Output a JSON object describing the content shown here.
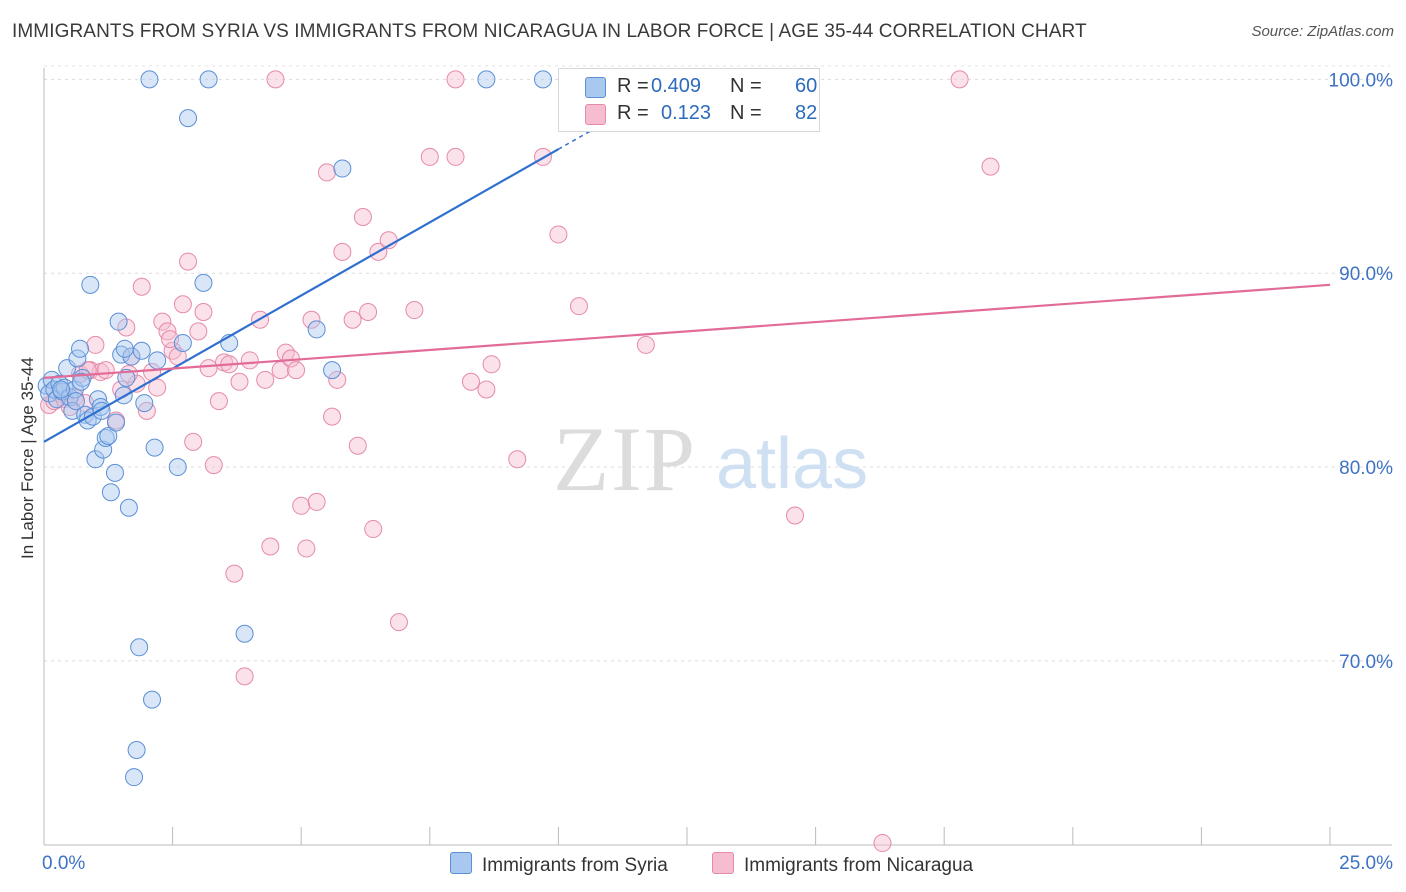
{
  "title": "IMMIGRANTS FROM SYRIA VS IMMIGRANTS FROM NICARAGUA IN LABOR FORCE | AGE 35-44 CORRELATION CHART",
  "source": "Source: ZipAtlas.com",
  "watermark": {
    "zip": "ZIP",
    "atlas": "atlas"
  },
  "legend": {
    "r_label": "R =",
    "n_label": "N =",
    "syria": {
      "r": "0.409",
      "n": "60"
    },
    "nicaragua": {
      "r": "0.123",
      "n": "82"
    }
  },
  "colors": {
    "syria_fill": "#a8c8ef",
    "syria_stroke": "#5b8fd6",
    "syria_line": "#2f6fd0",
    "nicaragua_fill": "#f6bdd0",
    "nicaragua_stroke": "#e58aaa",
    "nicaragua_line": "#e26b98",
    "tick_text": "#3d72c4",
    "grid": "#dcdcdc"
  },
  "chart_data": {
    "type": "scatter",
    "title": "IMMIGRANTS FROM SYRIA VS IMMIGRANTS FROM NICARAGUA IN LABOR FORCE | AGE 35-44 CORRELATION CHART",
    "xlabel": "",
    "ylabel": "In Labor Force | Age 35-44",
    "xlim": [
      0,
      25
    ],
    "ylim": [
      60.5,
      101
    ],
    "x_tick_labels": [
      "0.0%",
      "25.0%"
    ],
    "y_ticks": [
      70,
      80,
      90,
      100
    ],
    "y_tick_labels": [
      "70.0%",
      "80.0%",
      "90.0%",
      "100.0%"
    ],
    "series": [
      {
        "name": "Immigrants from Syria",
        "trend": {
          "x0": 0,
          "y0": 81.3,
          "x1": 10.0,
          "y1": 96.4,
          "dash_x1": 11.0,
          "dash_y1": 97.9
        },
        "points": [
          [
            0.05,
            84.2
          ],
          [
            0.1,
            83.8
          ],
          [
            0.15,
            84.5
          ],
          [
            0.2,
            84.0
          ],
          [
            0.25,
            83.5
          ],
          [
            0.3,
            84.3
          ],
          [
            0.35,
            83.9
          ],
          [
            0.4,
            84.1
          ],
          [
            0.45,
            85.1
          ],
          [
            0.5,
            83.6
          ],
          [
            0.55,
            82.9
          ],
          [
            0.6,
            84.0
          ],
          [
            0.65,
            85.6
          ],
          [
            0.7,
            86.1
          ],
          [
            0.75,
            84.6
          ],
          [
            0.8,
            82.7
          ],
          [
            0.85,
            82.4
          ],
          [
            0.9,
            89.4
          ],
          [
            0.95,
            82.6
          ],
          [
            1.0,
            80.4
          ],
          [
            1.05,
            83.5
          ],
          [
            1.1,
            83.1
          ],
          [
            1.15,
            80.9
          ],
          [
            1.2,
            81.5
          ],
          [
            1.25,
            81.6
          ],
          [
            1.3,
            78.7
          ],
          [
            1.4,
            82.3
          ],
          [
            1.45,
            87.5
          ],
          [
            1.5,
            85.8
          ],
          [
            1.55,
            83.7
          ],
          [
            1.6,
            84.6
          ],
          [
            1.65,
            77.9
          ],
          [
            1.7,
            85.7
          ],
          [
            1.75,
            64.0
          ],
          [
            1.8,
            65.4
          ],
          [
            1.85,
            70.7
          ],
          [
            1.9,
            86.0
          ],
          [
            1.95,
            83.3
          ],
          [
            2.05,
            100.0
          ],
          [
            2.1,
            68.0
          ],
          [
            2.15,
            81.0
          ],
          [
            2.2,
            85.5
          ],
          [
            2.6,
            80.0
          ],
          [
            2.7,
            86.4
          ],
          [
            2.8,
            98.0
          ],
          [
            3.1,
            89.5
          ],
          [
            3.2,
            100.0
          ],
          [
            3.6,
            86.4
          ],
          [
            3.9,
            71.4
          ],
          [
            5.3,
            87.1
          ],
          [
            5.6,
            85.0
          ],
          [
            5.8,
            95.4
          ],
          [
            8.6,
            100.0
          ],
          [
            9.7,
            100.0
          ],
          [
            1.38,
            79.7
          ],
          [
            0.62,
            83.4
          ],
          [
            0.33,
            84.0
          ],
          [
            1.12,
            82.9
          ],
          [
            0.72,
            84.4
          ],
          [
            1.57,
            86.1
          ]
        ]
      },
      {
        "name": "Immigrants from Nicaragua",
        "trend": {
          "x0": 0,
          "y0": 84.6,
          "x1": 25.0,
          "y1": 89.4
        },
        "points": [
          [
            0.1,
            83.2
          ],
          [
            0.2,
            83.4
          ],
          [
            0.3,
            83.8
          ],
          [
            0.4,
            83.5
          ],
          [
            0.5,
            83.1
          ],
          [
            0.6,
            83.6
          ],
          [
            0.7,
            84.8
          ],
          [
            0.8,
            83.3
          ],
          [
            0.9,
            85.0
          ],
          [
            1.0,
            86.3
          ],
          [
            1.1,
            84.9
          ],
          [
            1.2,
            85.0
          ],
          [
            1.4,
            82.4
          ],
          [
            1.5,
            84.0
          ],
          [
            1.6,
            87.2
          ],
          [
            1.7,
            85.7
          ],
          [
            1.8,
            84.3
          ],
          [
            1.9,
            89.3
          ],
          [
            2.0,
            82.9
          ],
          [
            2.1,
            84.9
          ],
          [
            2.2,
            84.1
          ],
          [
            2.3,
            87.5
          ],
          [
            2.4,
            87.0
          ],
          [
            2.5,
            86.0
          ],
          [
            2.6,
            85.7
          ],
          [
            2.7,
            88.4
          ],
          [
            2.8,
            90.6
          ],
          [
            2.9,
            81.3
          ],
          [
            3.0,
            87.0
          ],
          [
            3.1,
            88.0
          ],
          [
            3.2,
            85.1
          ],
          [
            3.3,
            80.1
          ],
          [
            3.4,
            83.4
          ],
          [
            3.5,
            85.4
          ],
          [
            3.6,
            85.3
          ],
          [
            3.7,
            74.5
          ],
          [
            3.8,
            84.4
          ],
          [
            3.9,
            69.2
          ],
          [
            4.0,
            85.5
          ],
          [
            4.2,
            87.6
          ],
          [
            4.3,
            84.5
          ],
          [
            4.4,
            75.9
          ],
          [
            4.6,
            85.0
          ],
          [
            4.7,
            85.9
          ],
          [
            4.8,
            85.6
          ],
          [
            4.9,
            85.0
          ],
          [
            5.0,
            78.0
          ],
          [
            5.1,
            75.8
          ],
          [
            5.2,
            87.6
          ],
          [
            5.3,
            78.2
          ],
          [
            5.5,
            95.2
          ],
          [
            5.6,
            82.6
          ],
          [
            5.7,
            84.5
          ],
          [
            5.8,
            91.1
          ],
          [
            6.0,
            87.6
          ],
          [
            6.1,
            81.1
          ],
          [
            6.2,
            92.9
          ],
          [
            6.3,
            88.0
          ],
          [
            6.4,
            76.8
          ],
          [
            6.5,
            91.1
          ],
          [
            6.7,
            91.7
          ],
          [
            6.9,
            72.0
          ],
          [
            7.2,
            88.1
          ],
          [
            7.5,
            96.0
          ],
          [
            8.0,
            96.0
          ],
          [
            8.3,
            84.4
          ],
          [
            8.6,
            84.0
          ],
          [
            8.7,
            85.3
          ],
          [
            9.2,
            80.4
          ],
          [
            9.7,
            96.0
          ],
          [
            10.0,
            92.0
          ],
          [
            10.4,
            88.3
          ],
          [
            11.7,
            86.3
          ],
          [
            14.6,
            77.5
          ],
          [
            16.3,
            60.6
          ],
          [
            17.8,
            100.0
          ],
          [
            18.4,
            95.5
          ],
          [
            4.5,
            100.0
          ],
          [
            8.0,
            100.0
          ],
          [
            1.65,
            84.8
          ],
          [
            2.45,
            86.6
          ],
          [
            0.85,
            85.0
          ]
        ]
      }
    ]
  },
  "bottom_legend": {
    "syria": "Immigrants from Syria",
    "nicaragua": "Immigrants from Nicaragua"
  }
}
